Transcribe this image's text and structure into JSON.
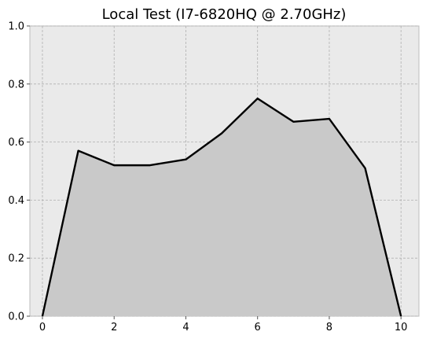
{
  "chart_data": {
    "type": "area",
    "title": "Local Test (I7-6820HQ @ 2.70GHz)",
    "xlabel": "",
    "ylabel": "",
    "x": [
      0,
      1,
      2,
      3,
      4,
      5,
      6,
      7,
      8,
      9,
      10
    ],
    "series": [
      {
        "values": [
          0.0,
          0.57,
          0.52,
          0.52,
          0.54,
          0.63,
          0.75,
          0.67,
          0.68,
          0.51,
          0.0
        ]
      }
    ],
    "xlim": [
      -0.35,
      10.5
    ],
    "ylim": [
      0,
      1.0
    ],
    "xticks": [
      0,
      2,
      4,
      6,
      8,
      10
    ],
    "yticks": [
      "0.0",
      "0.2",
      "0.4",
      "0.6",
      "0.8",
      "1.0"
    ],
    "grid": true,
    "colors": {
      "background": "#eaeaea",
      "line": "#000000",
      "fill": "#c9c9c9",
      "grid": "#b0b0b0"
    }
  }
}
